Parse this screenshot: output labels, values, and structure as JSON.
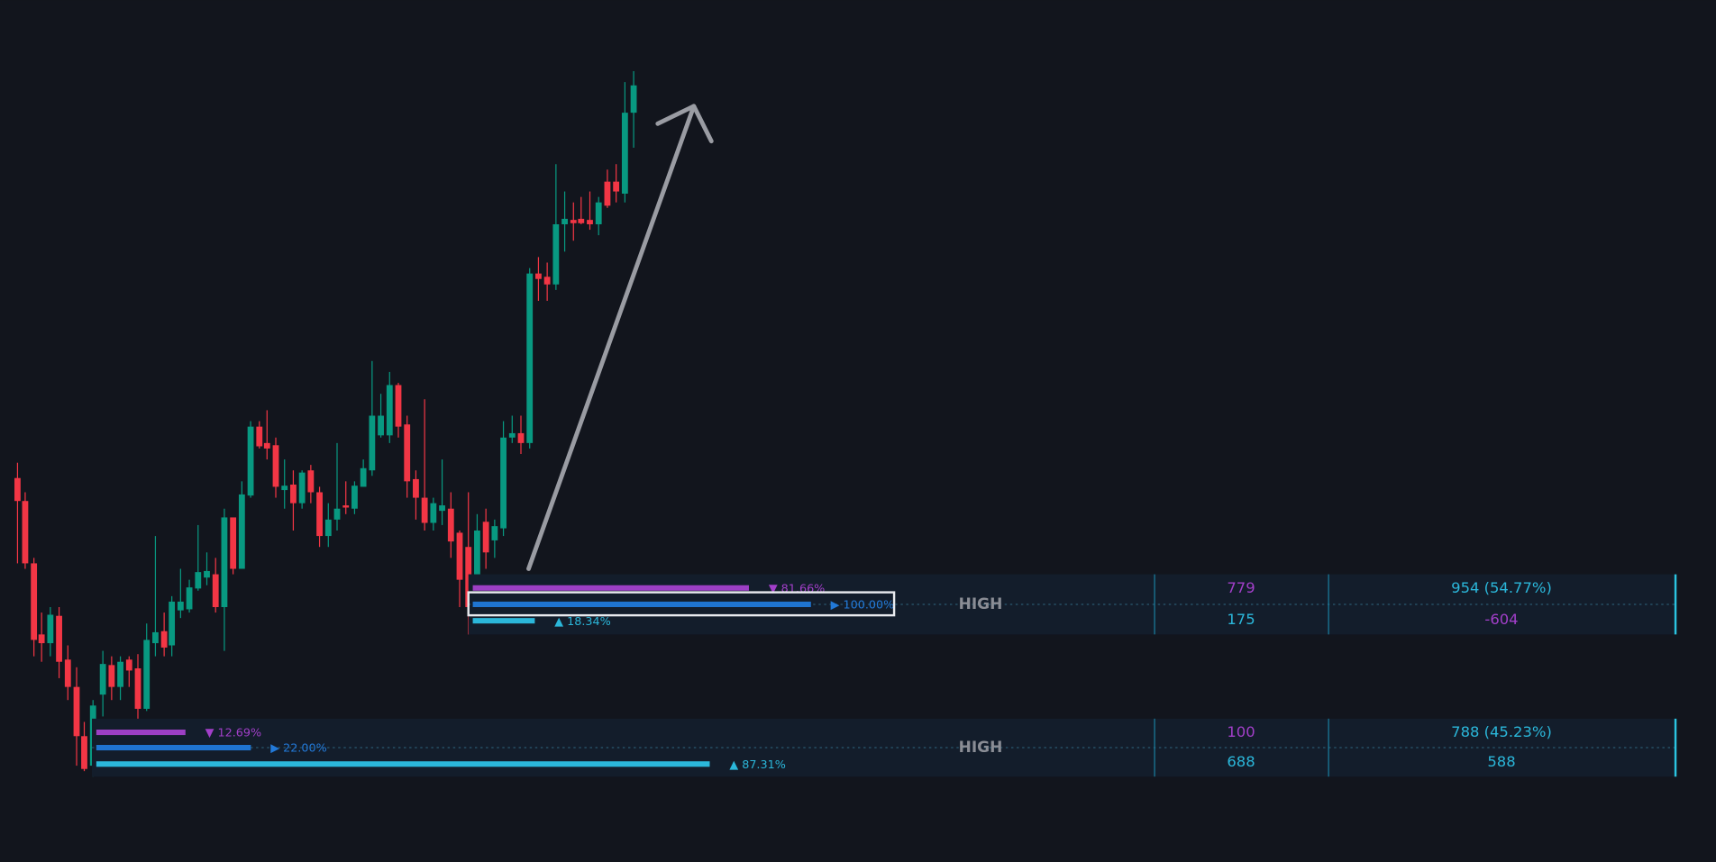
{
  "panels": [
    {
      "bars": {
        "values": [
          81.66,
          100,
          18.34
        ],
        "value_labels": [
          "▼ 81.66%",
          "▶ 100.00%",
          "▲ 18.34%"
        ]
      },
      "label": "HIGH",
      "cells": [
        [
          "779",
          "954 (54.77%)"
        ],
        [
          "175",
          "-604"
        ]
      ]
    },
    {
      "bars": {
        "values": [
          12.69,
          22,
          87.31
        ],
        "value_labels": [
          "▼ 12.69%",
          "▶ 22.00%",
          "▲ 87.31%"
        ]
      },
      "label": "HIGH",
      "cells": [
        [
          "100",
          "788 (45.23%)"
        ],
        [
          "688",
          "588"
        ]
      ]
    }
  ]
}
